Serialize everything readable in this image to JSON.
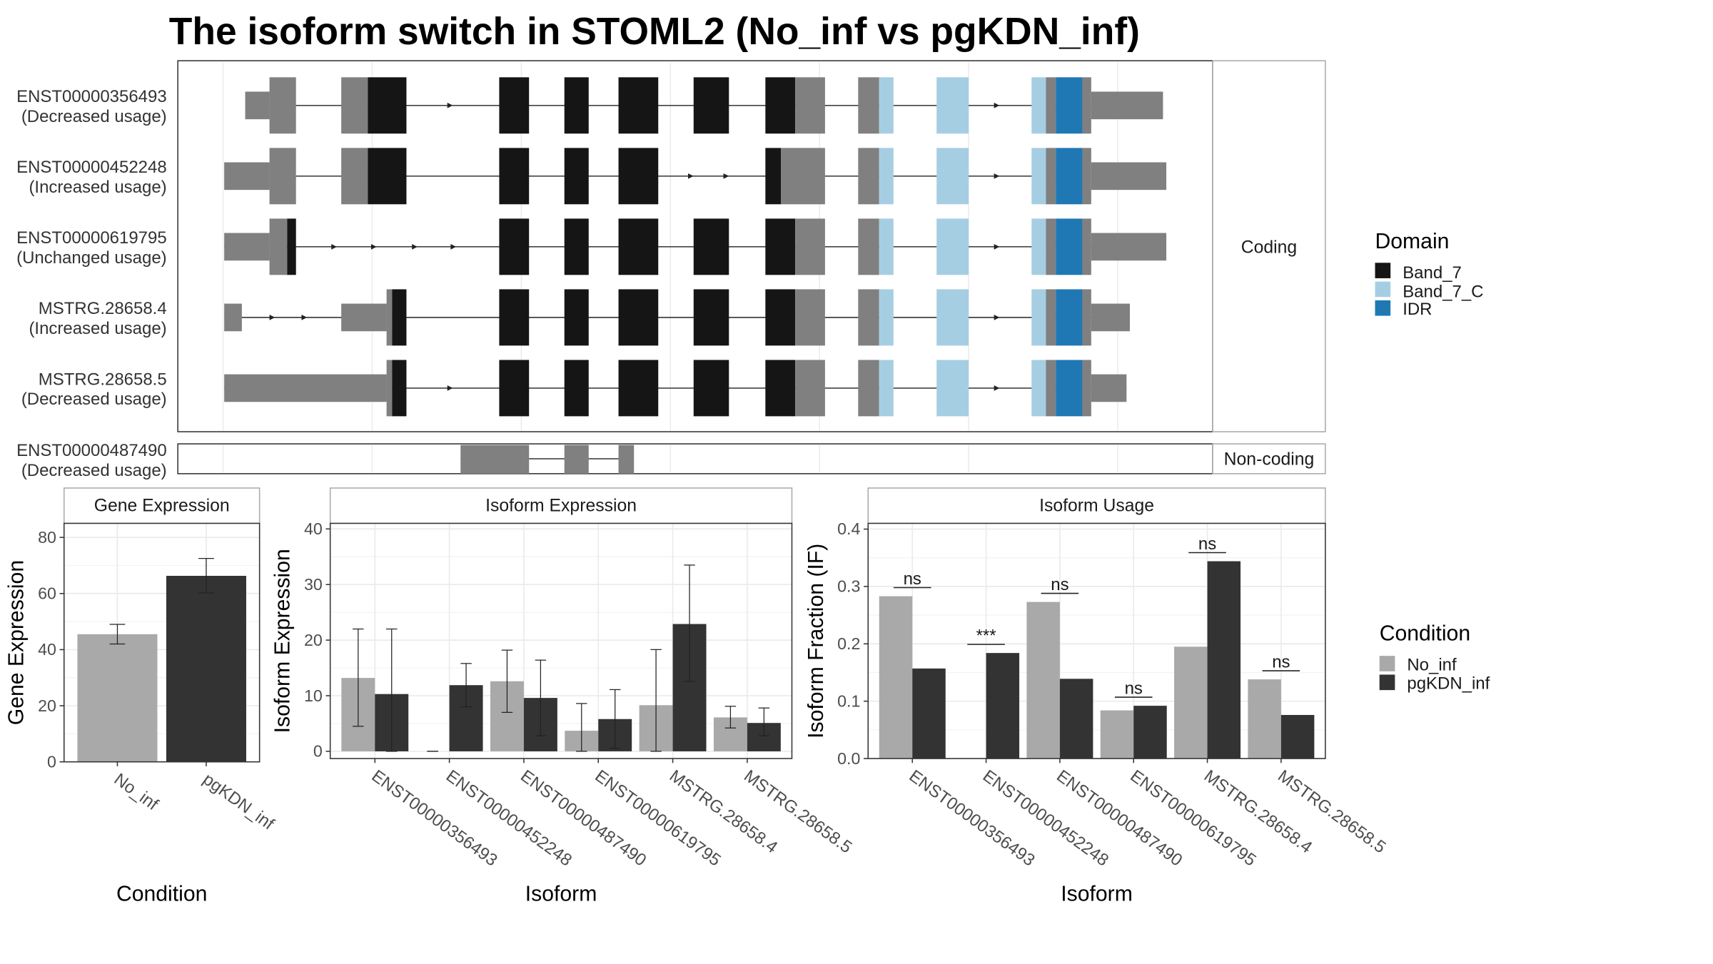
{
  "title": "The isoform switch in STOML2 (No_inf vs pgKDN_inf)",
  "colors": {
    "band7": "#151515",
    "band7c": "#a6cee3",
    "idr": "#1f78b4",
    "utr": "#808080",
    "no_inf": "#a9a9a9",
    "pgkdn_inf": "#333333",
    "panel_border": "#333333",
    "grid": "#ebebeb"
  },
  "structure": {
    "facets": {
      "coding": "Coding",
      "noncoding": "Non-coding"
    },
    "transcripts": [
      {
        "id": "ENST00000356493",
        "status": "(Decreased usage)",
        "group": "coding"
      },
      {
        "id": "ENST00000452248",
        "status": "(Increased usage)",
        "group": "coding"
      },
      {
        "id": "ENST00000619795",
        "status": "(Unchanged usage)",
        "group": "coding"
      },
      {
        "id": "MSTRG.28658.4",
        "status": "(Increased usage)",
        "group": "coding"
      },
      {
        "id": "MSTRG.28658.5",
        "status": "(Decreased usage)",
        "group": "coding"
      },
      {
        "id": "ENST00000487490",
        "status": "(Decreased usage)",
        "group": "noncoding"
      }
    ],
    "domain_legend": {
      "title": "Domain",
      "items": [
        {
          "label": "Band_7",
          "color": "#151515"
        },
        {
          "label": "Band_7_C",
          "color": "#a6cee3"
        },
        {
          "label": "IDR",
          "color": "#1f78b4"
        }
      ]
    }
  },
  "condition_legend": {
    "title": "Condition",
    "items": [
      {
        "label": "No_inf",
        "color": "#a9a9a9"
      },
      {
        "label": "pgKDN_inf",
        "color": "#333333"
      }
    ]
  },
  "chart_data": [
    {
      "type": "bar",
      "title": "Gene Expression",
      "xlabel": "Condition",
      "ylabel": "Gene Expression",
      "ylim": [
        0,
        85
      ],
      "yticks": [
        0,
        20,
        40,
        60,
        80
      ],
      "categories": [
        "No_inf",
        "pgKDN_inf"
      ],
      "values": [
        45.5,
        66.3
      ],
      "error_low": [
        42.0,
        60.2
      ],
      "error_high": [
        49.0,
        72.5
      ],
      "bar_colors": [
        "#a9a9a9",
        "#333333"
      ]
    },
    {
      "type": "bar",
      "title": "Isoform Expression",
      "xlabel": "Isoform",
      "ylabel": "Isoform Expression",
      "ylim": [
        -1.3,
        41
      ],
      "yticks": [
        0,
        10,
        20,
        30,
        40
      ],
      "categories": [
        "ENST00000356493",
        "ENST00000452248",
        "ENST00000487490",
        "ENST00000619795",
        "MSTRG.28658.4",
        "MSTRG.28658.5"
      ],
      "series": [
        {
          "name": "No_inf",
          "values": [
            13.2,
            0.0,
            12.6,
            3.7,
            8.3,
            6.1
          ],
          "error_low": [
            4.5,
            0.0,
            7.0,
            0.0,
            0.0,
            4.2
          ],
          "error_high": [
            22.0,
            0.0,
            18.2,
            8.6,
            18.3,
            8.1
          ]
        },
        {
          "name": "pgKDN_inf",
          "values": [
            10.3,
            11.9,
            9.6,
            5.8,
            22.9,
            5.1
          ],
          "error_low": [
            0.0,
            8.0,
            2.8,
            0.5,
            12.6,
            2.8
          ],
          "error_high": [
            22.0,
            15.8,
            16.4,
            11.1,
            33.5,
            7.8
          ]
        }
      ]
    },
    {
      "type": "bar",
      "title": "Isoform Usage",
      "xlabel": "Isoform",
      "ylabel": "Isoform Fraction (IF)",
      "ylim": [
        0,
        0.41
      ],
      "yticks": [
        0.0,
        0.1,
        0.2,
        0.3,
        0.4
      ],
      "categories": [
        "ENST00000356493",
        "ENST00000452248",
        "ENST00000487490",
        "ENST00000619795",
        "MSTRG.28658.4",
        "MSTRG.28658.5"
      ],
      "series": [
        {
          "name": "No_inf",
          "values": [
            0.283,
            0.0,
            0.273,
            0.084,
            0.195,
            0.138
          ]
        },
        {
          "name": "pgKDN_inf",
          "values": [
            0.157,
            0.184,
            0.139,
            0.092,
            0.344,
            0.076
          ]
        }
      ],
      "significance": [
        "ns",
        "***",
        "ns",
        "ns",
        "ns",
        "ns"
      ]
    }
  ]
}
